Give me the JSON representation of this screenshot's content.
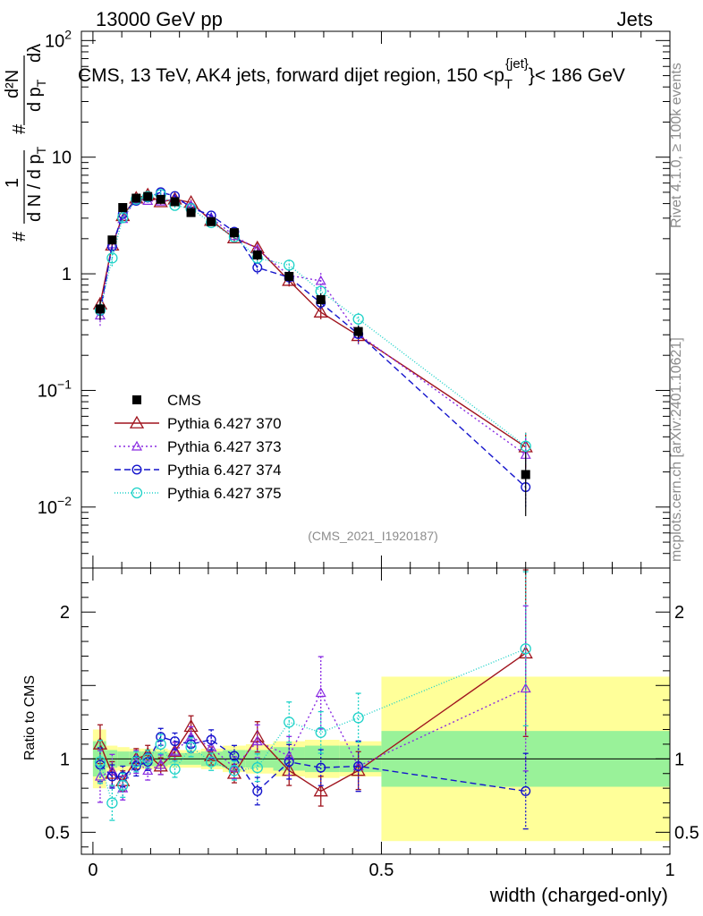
{
  "header": {
    "left": "13000 GeV pp",
    "right": "Jets"
  },
  "chart_data": {
    "type": "scatter",
    "title": "CMS, 13 TeV, AK4 jets, forward dijet region, 150 <p",
    "title_sup": "{jet}",
    "title_sub": "T",
    "title_tail": "}< 186 GeV",
    "ylabel": {
      "one": "1",
      "denominator": "d N / d p",
      "denominator_sub": "T",
      "hash1": "#",
      "hash2": "#",
      "numerator": "d²N",
      "numerator_den": "d p",
      "numerator_den_sub": "T",
      "dlambda": "dλ"
    },
    "xlabel": "width (charged-only)",
    "ratio_ylabel": "Ratio to CMS",
    "xlim": [
      -0.02,
      1.0
    ],
    "ylim": [
      0.003,
      120
    ],
    "yscale": "log",
    "ratio_ylim": [
      0.35,
      2.3
    ],
    "x_ticks": [
      {
        "v": 0,
        "label": "0"
      },
      {
        "v": 0.5,
        "label": "0.5"
      },
      {
        "v": 1,
        "label": "1"
      }
    ],
    "y_ticks": [
      {
        "v": 100,
        "base": "10",
        "exp": "2"
      },
      {
        "v": 10,
        "base": "10",
        "exp": ""
      },
      {
        "v": 1,
        "base": "1",
        "exp": ""
      },
      {
        "v": 0.1,
        "base": "10",
        "exp": "−1"
      },
      {
        "v": 0.01,
        "base": "10",
        "exp": "−2"
      }
    ],
    "ratio_ticks": [
      {
        "v": 2,
        "label": "2"
      },
      {
        "v": 1,
        "label": "1"
      },
      {
        "v": 0.5,
        "label": "0.5"
      }
    ],
    "watermark": "(CMS_2021_I1920187)",
    "side_top": "Rivet 4.1.0, ≥ 100k events",
    "side_bottom": "mcplots.cern.ch [arXiv:2401.10621]",
    "legend_position": "lower-left",
    "x": [
      0.0125,
      0.0333,
      0.0517,
      0.075,
      0.095,
      0.1175,
      0.142,
      0.17,
      0.205,
      0.245,
      0.285,
      0.34,
      0.395,
      0.46,
      0.75
    ],
    "data": {
      "name": "CMS",
      "color": "#000000",
      "values": [
        0.5,
        1.95,
        3.7,
        4.45,
        4.6,
        4.35,
        4.15,
        3.35,
        2.8,
        2.25,
        1.45,
        0.95,
        0.6,
        0.32,
        0.019
      ],
      "band_inner": [
        0.12,
        0.06,
        0.05,
        0.05,
        0.05,
        0.05,
        0.04,
        0.04,
        0.05,
        0.06,
        0.06,
        0.08,
        0.09,
        0.09,
        0.19
      ],
      "band_outer": [
        0.2,
        0.09,
        0.08,
        0.07,
        0.07,
        0.07,
        0.06,
        0.06,
        0.07,
        0.09,
        0.1,
        0.12,
        0.13,
        0.12,
        0.56
      ]
    },
    "series": [
      {
        "name": "Pythia 6.427 370",
        "color": "#a0141e",
        "marker": "triangle",
        "dash": "",
        "ratio": [
          1.1,
          0.9,
          0.85,
          1.0,
          1.03,
          0.95,
          1.05,
          1.22,
          1.02,
          0.9,
          1.15,
          0.92,
          0.78,
          0.92,
          1.72
        ],
        "err": [
          0.12,
          0.09,
          0.08,
          0.07,
          0.06,
          0.06,
          0.06,
          0.06,
          0.06,
          0.07,
          0.09,
          0.11,
          0.13,
          0.14,
          0.33
        ]
      },
      {
        "name": "Pythia 6.427 373",
        "color": "#8a2be2",
        "marker": "triangle-small",
        "dash": "2,3",
        "ratio": [
          0.88,
          0.92,
          0.8,
          0.98,
          0.92,
          0.96,
          1.05,
          1.15,
          1.08,
          0.94,
          1.12,
          1.02,
          1.45,
          0.95,
          1.48
        ],
        "err": [
          0.2,
          0.12,
          0.1,
          0.08,
          0.07,
          0.07,
          0.06,
          0.06,
          0.07,
          0.08,
          0.1,
          0.13,
          0.17,
          0.18,
          0.38
        ]
      },
      {
        "name": "Pythia 6.427 374",
        "color": "#1414cc",
        "marker": "circle",
        "dash": "7,4",
        "ratio": [
          0.96,
          0.88,
          0.88,
          0.95,
          0.98,
          1.15,
          1.12,
          1.1,
          1.13,
          1.02,
          0.78,
          0.98,
          0.94,
          0.95,
          0.78
        ],
        "err": [
          0.12,
          0.09,
          0.08,
          0.07,
          0.06,
          0.05,
          0.05,
          0.05,
          0.06,
          0.07,
          0.12,
          0.12,
          0.13,
          0.18,
          0.33
        ]
      },
      {
        "name": "Pythia 6.427 375",
        "color": "#1ed2c8",
        "marker": "circle-big",
        "dash": "1,2",
        "ratio": [
          0.98,
          0.7,
          0.82,
          0.98,
          1.0,
          1.1,
          0.93,
          1.08,
          0.98,
          0.92,
          0.94,
          1.25,
          1.18,
          1.28,
          1.75
        ],
        "err": [
          0.15,
          0.17,
          0.1,
          0.07,
          0.06,
          0.06,
          0.06,
          0.06,
          0.06,
          0.07,
          0.1,
          0.11,
          0.12,
          0.13,
          0.3
        ]
      }
    ]
  }
}
